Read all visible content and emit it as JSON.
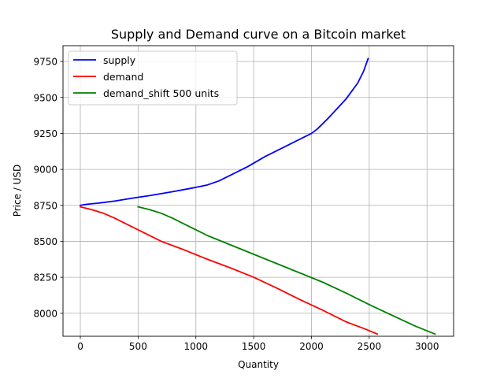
{
  "chart_data": {
    "type": "line",
    "title": "Supply and Demand curve on a Bitcoin market",
    "xlabel": "Quantity",
    "ylabel": "Price / USD",
    "xlim": [
      -150,
      3230
    ],
    "ylim": [
      7840,
      9860
    ],
    "xticks": [
      0,
      500,
      1000,
      1500,
      2000,
      2500,
      3000
    ],
    "yticks": [
      8000,
      8250,
      8500,
      8750,
      9000,
      9250,
      9500,
      9750
    ],
    "grid": true,
    "legend_position": "top-left",
    "series": [
      {
        "name": "supply",
        "color": "#0000ff",
        "x": [
          0,
          50,
          150,
          300,
          450,
          600,
          800,
          1000,
          1100,
          1200,
          1300,
          1450,
          1600,
          1800,
          2000,
          2050,
          2150,
          2300,
          2400,
          2450,
          2490
        ],
        "y": [
          8750,
          8757,
          8765,
          8780,
          8800,
          8818,
          8845,
          8875,
          8892,
          8920,
          8960,
          9020,
          9090,
          9170,
          9250,
          9280,
          9360,
          9490,
          9600,
          9680,
          9770
        ]
      },
      {
        "name": "demand",
        "color": "#ff0000",
        "x": [
          0,
          100,
          200,
          300,
          400,
          500,
          700,
          900,
          1100,
          1300,
          1500,
          1700,
          1900,
          2100,
          2300,
          2450,
          2570
        ],
        "y": [
          8740,
          8720,
          8695,
          8660,
          8620,
          8580,
          8500,
          8440,
          8375,
          8315,
          8250,
          8175,
          8095,
          8020,
          7940,
          7895,
          7855
        ]
      },
      {
        "name": "demand_shift 500 units",
        "color": "#008000",
        "x": [
          500,
          600,
          700,
          800,
          900,
          1000,
          1100,
          1300,
          1500,
          1700,
          1900,
          2100,
          2300,
          2500,
          2700,
          2900,
          3070
        ],
        "y": [
          8740,
          8720,
          8695,
          8660,
          8620,
          8580,
          8540,
          8475,
          8410,
          8345,
          8280,
          8215,
          8140,
          8060,
          7985,
          7910,
          7855
        ]
      }
    ]
  }
}
